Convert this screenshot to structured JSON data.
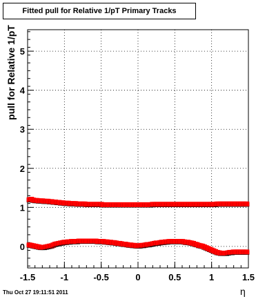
{
  "title_box": "Fitted pull for Relative 1/pT  Primary Tracks",
  "timestamp": "Thu Oct 27 19:11:51 2011",
  "chart_data": {
    "type": "scatter",
    "title": "Fitted pull for Relative 1/pT  Primary Tracks",
    "xlabel": "η",
    "ylabel": "pull for Relative 1/pT",
    "xlim": [
      -1.5,
      1.5
    ],
    "ylim": [
      -0.55,
      5.55
    ],
    "grid": true,
    "x_ticks": [
      "-1.5",
      "-1",
      "-0.5",
      "0",
      "0.5",
      "1",
      "1.5"
    ],
    "y_ticks": [
      "0",
      "1",
      "2",
      "3",
      "4",
      "5"
    ],
    "series": [
      {
        "marker_color": "#ff0000",
        "shadow_color": "#000000",
        "x": [
          -1.475,
          -1.45,
          -1.425,
          -1.4,
          -1.375,
          -1.35,
          -1.325,
          -1.3,
          -1.275,
          -1.25,
          -1.225,
          -1.2,
          -1.175,
          -1.15,
          -1.125,
          -1.1,
          -1.075,
          -1.05,
          -1.025,
          -1.0,
          -0.975,
          -0.95,
          -0.925,
          -0.9,
          -0.875,
          -0.85,
          -0.825,
          -0.8,
          -0.775,
          -0.75,
          -0.725,
          -0.7,
          -0.675,
          -0.65,
          -0.625,
          -0.6,
          -0.575,
          -0.55,
          -0.525,
          -0.5,
          -0.475,
          -0.45,
          -0.425,
          -0.4,
          -0.375,
          -0.35,
          -0.325,
          -0.3,
          -0.275,
          -0.25,
          -0.225,
          -0.2,
          -0.175,
          -0.15,
          -0.125,
          -0.1,
          -0.075,
          -0.05,
          -0.025,
          0.0,
          0.025,
          0.05,
          0.075,
          0.1,
          0.125,
          0.15,
          0.175,
          0.2,
          0.225,
          0.25,
          0.275,
          0.3,
          0.325,
          0.35,
          0.375,
          0.4,
          0.425,
          0.45,
          0.475,
          0.5,
          0.525,
          0.55,
          0.575,
          0.6,
          0.625,
          0.65,
          0.675,
          0.7,
          0.725,
          0.75,
          0.775,
          0.8,
          0.825,
          0.85,
          0.875,
          0.9,
          0.925,
          0.95,
          0.975,
          1.0,
          1.025,
          1.05,
          1.075,
          1.1,
          1.125,
          1.15,
          1.175,
          1.2,
          1.225,
          1.25,
          1.275,
          1.3,
          1.325,
          1.35,
          1.375,
          1.4,
          1.425,
          1.45,
          1.475
        ],
        "y": [
          1.19,
          1.2,
          1.18,
          1.17,
          1.17,
          1.16,
          1.16,
          1.16,
          1.15,
          1.15,
          1.15,
          1.14,
          1.14,
          1.13,
          1.13,
          1.12,
          1.12,
          1.11,
          1.11,
          1.1,
          1.1,
          1.1,
          1.09,
          1.09,
          1.09,
          1.09,
          1.08,
          1.08,
          1.08,
          1.08,
          1.08,
          1.07,
          1.07,
          1.07,
          1.07,
          1.07,
          1.07,
          1.07,
          1.07,
          1.07,
          1.06,
          1.06,
          1.06,
          1.06,
          1.06,
          1.06,
          1.06,
          1.06,
          1.06,
          1.06,
          1.06,
          1.06,
          1.06,
          1.06,
          1.06,
          1.06,
          1.06,
          1.06,
          1.06,
          1.06,
          1.06,
          1.06,
          1.06,
          1.06,
          1.06,
          1.06,
          1.06,
          1.07,
          1.07,
          1.07,
          1.07,
          1.07,
          1.07,
          1.07,
          1.07,
          1.07,
          1.07,
          1.07,
          1.07,
          1.07,
          1.07,
          1.07,
          1.07,
          1.07,
          1.07,
          1.07,
          1.07,
          1.07,
          1.07,
          1.07,
          1.07,
          1.07,
          1.07,
          1.07,
          1.07,
          1.07,
          1.07,
          1.07,
          1.07,
          1.07,
          1.07,
          1.07,
          1.08,
          1.08,
          1.08,
          1.08,
          1.08,
          1.08,
          1.08,
          1.08,
          1.08,
          1.08,
          1.08,
          1.08,
          1.08,
          1.08,
          1.08,
          1.08,
          1.08
        ]
      },
      {
        "marker_color": "#ff0000",
        "shadow_color": "#000000",
        "x": [
          -1.475,
          -1.45,
          -1.425,
          -1.4,
          -1.375,
          -1.35,
          -1.325,
          -1.3,
          -1.275,
          -1.25,
          -1.225,
          -1.2,
          -1.175,
          -1.15,
          -1.125,
          -1.1,
          -1.075,
          -1.05,
          -1.025,
          -1.0,
          -0.975,
          -0.95,
          -0.925,
          -0.9,
          -0.875,
          -0.85,
          -0.825,
          -0.8,
          -0.775,
          -0.75,
          -0.725,
          -0.7,
          -0.675,
          -0.65,
          -0.625,
          -0.6,
          -0.575,
          -0.55,
          -0.525,
          -0.5,
          -0.475,
          -0.45,
          -0.425,
          -0.4,
          -0.375,
          -0.35,
          -0.325,
          -0.3,
          -0.275,
          -0.25,
          -0.225,
          -0.2,
          -0.175,
          -0.15,
          -0.125,
          -0.1,
          -0.075,
          -0.05,
          -0.025,
          0.0,
          0.025,
          0.05,
          0.075,
          0.1,
          0.125,
          0.15,
          0.175,
          0.2,
          0.225,
          0.25,
          0.275,
          0.3,
          0.325,
          0.35,
          0.375,
          0.4,
          0.425,
          0.45,
          0.475,
          0.5,
          0.525,
          0.55,
          0.575,
          0.6,
          0.625,
          0.65,
          0.675,
          0.7,
          0.725,
          0.75,
          0.775,
          0.8,
          0.825,
          0.85,
          0.875,
          0.9,
          0.925,
          0.95,
          0.975,
          1.0,
          1.025,
          1.05,
          1.075,
          1.1,
          1.125,
          1.15,
          1.175,
          1.2,
          1.225,
          1.25,
          1.275,
          1.3,
          1.325,
          1.35,
          1.375,
          1.4,
          1.425,
          1.45,
          1.475
        ],
        "y": [
          0.03,
          0.02,
          0.01,
          0.0,
          -0.01,
          -0.02,
          -0.03,
          -0.03,
          -0.03,
          -0.02,
          -0.01,
          0.0,
          0.01,
          0.03,
          0.05,
          0.06,
          0.07,
          0.08,
          0.09,
          0.1,
          0.1,
          0.11,
          0.11,
          0.12,
          0.12,
          0.12,
          0.12,
          0.13,
          0.13,
          0.13,
          0.13,
          0.13,
          0.13,
          0.13,
          0.13,
          0.13,
          0.13,
          0.12,
          0.12,
          0.12,
          0.12,
          0.11,
          0.11,
          0.1,
          0.1,
          0.09,
          0.09,
          0.08,
          0.07,
          0.07,
          0.06,
          0.05,
          0.05,
          0.04,
          0.03,
          0.03,
          0.02,
          0.02,
          0.01,
          0.01,
          0.01,
          0.02,
          0.02,
          0.03,
          0.04,
          0.04,
          0.05,
          0.06,
          0.07,
          0.08,
          0.08,
          0.09,
          0.1,
          0.1,
          0.11,
          0.11,
          0.12,
          0.12,
          0.12,
          0.12,
          0.12,
          0.12,
          0.12,
          0.12,
          0.11,
          0.1,
          0.1,
          0.09,
          0.08,
          0.07,
          0.05,
          0.04,
          0.02,
          0.01,
          0.0,
          -0.02,
          -0.04,
          -0.06,
          -0.08,
          -0.1,
          -0.12,
          -0.14,
          -0.16,
          -0.17,
          -0.18,
          -0.18,
          -0.18,
          -0.18,
          -0.17,
          -0.16,
          -0.16,
          -0.15,
          -0.15,
          -0.15,
          -0.15,
          -0.15,
          -0.15,
          -0.15,
          -0.15
        ]
      }
    ]
  }
}
